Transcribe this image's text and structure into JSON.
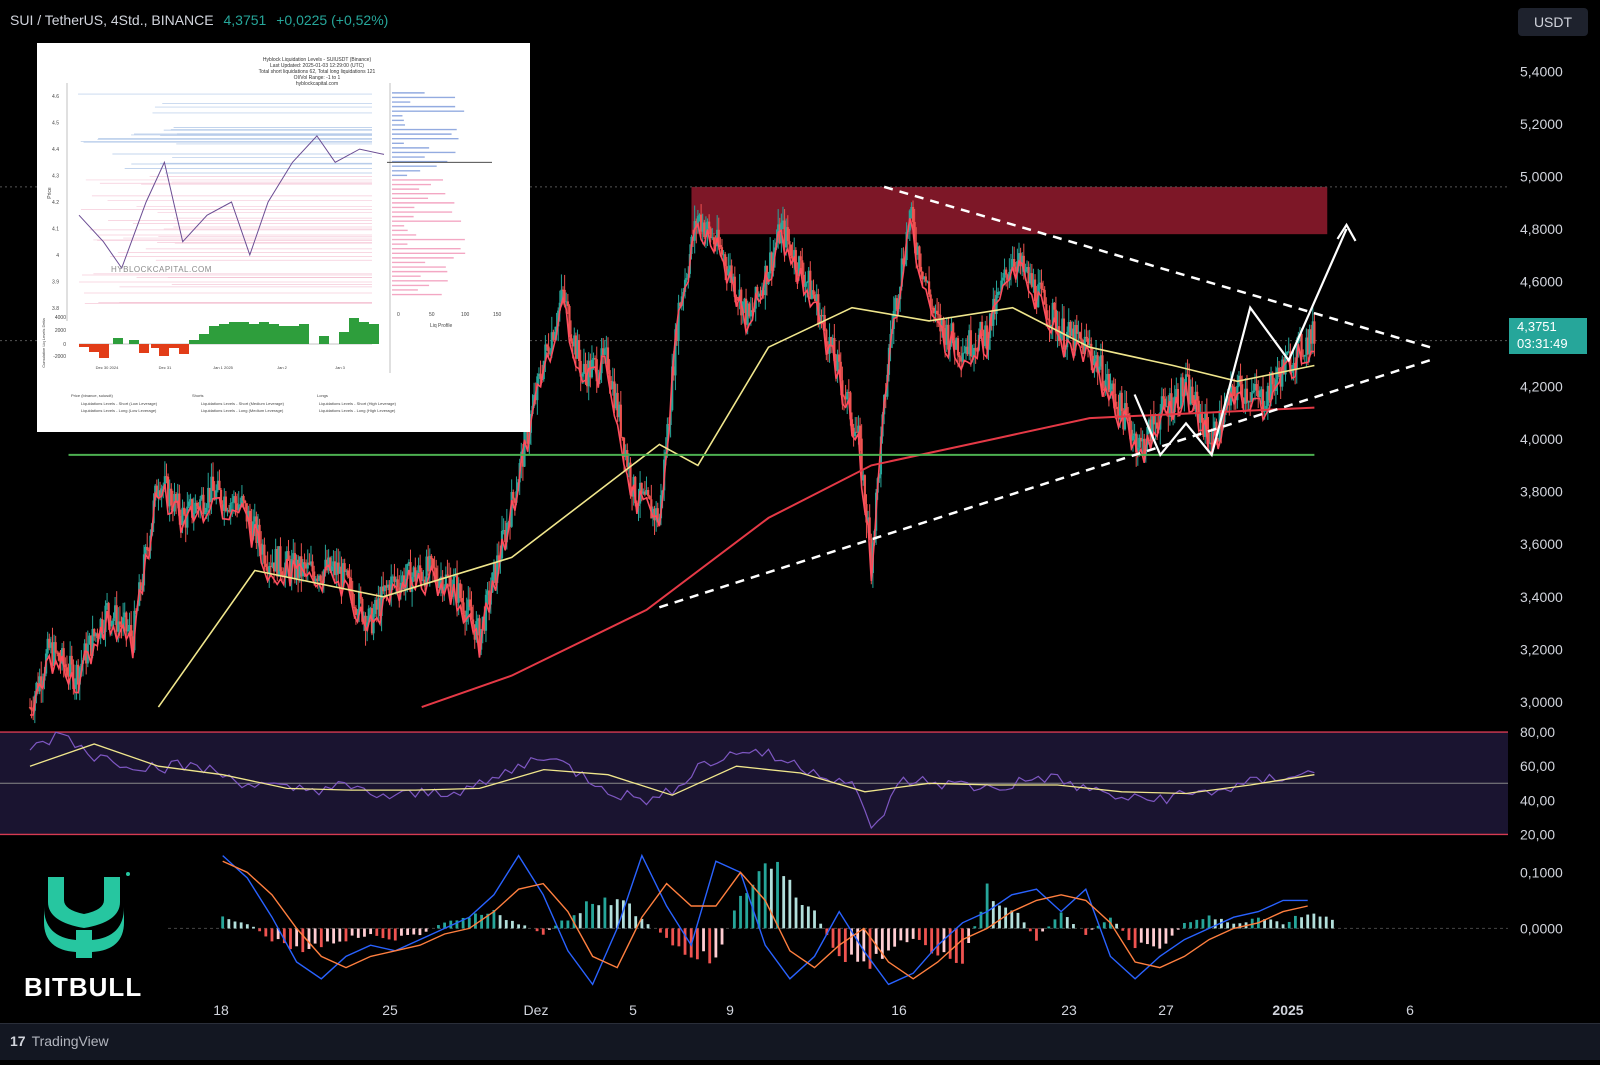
{
  "header": {
    "symbol": "SUI / TetherUS, 4Std., BINANCE",
    "price": "4,3751",
    "change": "+0,0225 (+0,52%)"
  },
  "currency_button": "USDT",
  "price_label": {
    "price": "4,3751",
    "countdown": "03:31:49"
  },
  "footer": {
    "logo_mark": "17",
    "logo_text": "TradingView"
  },
  "brand": {
    "name": "BITBULL"
  },
  "inset": {
    "title_lines": [
      "Hyblock Liquidation Levels - SUIUSDT (Binance)",
      "Last Updated: 2025-01-03 12:29:00 (UTC)",
      "Total short liquidations 62, Total long liquidations 121",
      "OI/Vol Range: -1 to 1",
      "hyblockcapital.com"
    ],
    "watermark": "HYBLOCKCAPITAL.COM",
    "ylabel": "Price",
    "lower_ylabel": "Cumulative Liq Levels Delta",
    "yticks": [
      "4.6",
      "4.5",
      "4.4",
      "4.3",
      "4.2",
      "4.1",
      "4",
      "3.9",
      "3.8"
    ],
    "lower_yticks": [
      "4000",
      "2000",
      "0",
      "-2000"
    ],
    "xticks": [
      "Dec 30 2024",
      "Dec 31",
      "Jan 1 2025",
      "Jan 2",
      "Jan 3"
    ],
    "profile_xticks": [
      "0",
      "50",
      "100",
      "150"
    ],
    "profile_label": "Liq Profile",
    "legend": [
      "Price (binance, suiusdt)",
      "Shorts",
      "Longs",
      "Liquidations Levels - Short (Low Leverage)",
      "Liquidations Levels - Short (Medium Leverage)",
      "Liquidations Levels - Short (High Leverage)",
      "Liquidations Levels - Long (Low Leverage)",
      "Liquidations Levels - Long (Medium Leverage)",
      "Liquidations Levels - Long (High Leverage)"
    ]
  },
  "colors": {
    "background": "#000000",
    "up": "#26a69a",
    "down": "#ef5350",
    "ema_yellow": "#f0e68c",
    "ema_red": "#e53946",
    "supertrend": "#ff4d5e",
    "resistance_zone": "#8b1a2b",
    "support_line": "#4caf50",
    "rsi_line": "#7e57c2",
    "rsi_signal": "#f0e68c",
    "macd_line": "#2962ff",
    "signal_line": "#ff7f3f"
  },
  "chart_data": [
    {
      "type": "candlestick",
      "title": "SUI / TetherUS, 4Std., BINANCE",
      "ylim": [
        2.95,
        5.5
      ],
      "ytick_labels": [
        "5,4000",
        "5,2000",
        "5,0000",
        "4,8000",
        "4,6000",
        "4,4000",
        "4,2000",
        "4,0000",
        "3,8000",
        "3,6000",
        "3,4000",
        "3,2000",
        "3,0000"
      ],
      "ytick_values": [
        5.4,
        5.2,
        5.0,
        4.8,
        4.6,
        4.4,
        4.2,
        4.0,
        3.8,
        3.6,
        3.4,
        3.2,
        3.0
      ],
      "xtick_labels": [
        "18",
        "25",
        "Dez",
        "5",
        "9",
        "16",
        "23",
        "27",
        "2025",
        "6"
      ],
      "price_path": [
        [
          0,
          2.98
        ],
        [
          3,
          3.2
        ],
        [
          7,
          3.1
        ],
        [
          12,
          3.35
        ],
        [
          16,
          3.25
        ],
        [
          20,
          3.85
        ],
        [
          24,
          3.7
        ],
        [
          28,
          3.8
        ],
        [
          33,
          3.75
        ],
        [
          37,
          3.55
        ],
        [
          42,
          3.5
        ],
        [
          48,
          3.5
        ],
        [
          53,
          3.3
        ],
        [
          56,
          3.45
        ],
        [
          62,
          3.5
        ],
        [
          66,
          3.45
        ],
        [
          70,
          3.25
        ],
        [
          75,
          3.75
        ],
        [
          80,
          4.3
        ],
        [
          83,
          4.55
        ],
        [
          86,
          4.25
        ],
        [
          90,
          4.3
        ],
        [
          94,
          3.8
        ],
        [
          98,
          3.7
        ],
        [
          101,
          4.5
        ],
        [
          104,
          4.85
        ],
        [
          108,
          4.7
        ],
        [
          112,
          4.45
        ],
        [
          117,
          4.8
        ],
        [
          122,
          4.55
        ],
        [
          126,
          4.25
        ],
        [
          129,
          4.0
        ],
        [
          131,
          3.55
        ],
        [
          134,
          4.4
        ],
        [
          137,
          4.85
        ],
        [
          141,
          4.45
        ],
        [
          145,
          4.35
        ],
        [
          149,
          4.4
        ],
        [
          153,
          4.7
        ],
        [
          157,
          4.55
        ],
        [
          161,
          4.4
        ],
        [
          165,
          4.35
        ],
        [
          169,
          4.15
        ],
        [
          173,
          3.97
        ],
        [
          176,
          4.1
        ],
        [
          180,
          4.2
        ],
        [
          184,
          4.0
        ],
        [
          188,
          4.2
        ],
        [
          192,
          4.15
        ],
        [
          196,
          4.3
        ],
        [
          200,
          4.4
        ]
      ],
      "ema_yellow": [
        [
          20,
          2.98
        ],
        [
          35,
          3.5
        ],
        [
          55,
          3.4
        ],
        [
          75,
          3.55
        ],
        [
          98,
          3.98
        ],
        [
          104,
          3.9
        ],
        [
          115,
          4.35
        ],
        [
          128,
          4.5
        ],
        [
          140,
          4.45
        ],
        [
          153,
          4.5
        ],
        [
          165,
          4.35
        ],
        [
          178,
          4.28
        ],
        [
          188,
          4.22
        ],
        [
          200,
          4.28
        ]
      ],
      "ema_red": [
        [
          61,
          2.98
        ],
        [
          75,
          3.1
        ],
        [
          96,
          3.35
        ],
        [
          115,
          3.7
        ],
        [
          131,
          3.9
        ],
        [
          150,
          4.0
        ],
        [
          165,
          4.08
        ],
        [
          200,
          4.12
        ]
      ],
      "annotations": {
        "resistance_zone": [
          4.78,
          4.96
        ],
        "support_level": 3.94,
        "last_price_line": 4.375,
        "triangle_upper": [
          [
            133,
            4.96
          ],
          [
            218,
            4.35
          ]
        ],
        "triangle_lower": [
          [
            98,
            3.36
          ],
          [
            218,
            4.3
          ]
        ],
        "projected_target": 4.8
      },
      "last_price": 4.3751
    },
    {
      "type": "line",
      "title": "RSI",
      "ylim": [
        15,
        90
      ],
      "ytick_labels": [
        "80,00",
        "60,00",
        "40,00",
        "20,00"
      ],
      "ytick_values": [
        80,
        60,
        40,
        20
      ],
      "bands": [
        20,
        50,
        80
      ],
      "rsi": [
        [
          0,
          70
        ],
        [
          5,
          80
        ],
        [
          10,
          66
        ],
        [
          18,
          60
        ],
        [
          26,
          60
        ],
        [
          34,
          50
        ],
        [
          40,
          46
        ],
        [
          48,
          48
        ],
        [
          56,
          42
        ],
        [
          64,
          45
        ],
        [
          70,
          48
        ],
        [
          80,
          67
        ],
        [
          86,
          55
        ],
        [
          92,
          43
        ],
        [
          98,
          40
        ],
        [
          104,
          60
        ],
        [
          112,
          70
        ],
        [
          120,
          60
        ],
        [
          128,
          50
        ],
        [
          131,
          22
        ],
        [
          136,
          52
        ],
        [
          142,
          50
        ],
        [
          150,
          47
        ],
        [
          158,
          54
        ],
        [
          166,
          45
        ],
        [
          172,
          40
        ],
        [
          180,
          43
        ],
        [
          188,
          48
        ],
        [
          196,
          55
        ],
        [
          200,
          56
        ]
      ],
      "signal": [
        [
          0,
          60
        ],
        [
          10,
          73
        ],
        [
          20,
          60
        ],
        [
          30,
          55
        ],
        [
          40,
          47
        ],
        [
          50,
          46
        ],
        [
          60,
          46
        ],
        [
          70,
          47
        ],
        [
          80,
          58
        ],
        [
          90,
          55
        ],
        [
          100,
          43
        ],
        [
          110,
          60
        ],
        [
          120,
          56
        ],
        [
          130,
          45
        ],
        [
          140,
          50
        ],
        [
          150,
          49
        ],
        [
          160,
          49
        ],
        [
          170,
          45
        ],
        [
          180,
          44
        ],
        [
          190,
          49
        ],
        [
          200,
          55
        ]
      ]
    },
    {
      "type": "bar",
      "title": "MACD",
      "ylim": [
        -0.11,
        0.14
      ],
      "ytick_labels": [
        "0,1000",
        "0,0000"
      ],
      "ytick_values": [
        0.1,
        0.0
      ],
      "histogram": [
        [
          0,
          0.02
        ],
        [
          4,
          0.01
        ],
        [
          8,
          -0.02
        ],
        [
          12,
          -0.04
        ],
        [
          16,
          -0.03
        ],
        [
          20,
          -0.02
        ],
        [
          24,
          -0.01
        ],
        [
          28,
          -0.02
        ],
        [
          32,
          -0.01
        ],
        [
          36,
          0.01
        ],
        [
          40,
          0.02
        ],
        [
          44,
          0.03
        ],
        [
          48,
          0.01
        ],
        [
          52,
          -0.01
        ],
        [
          56,
          0.02
        ],
        [
          60,
          0.05
        ],
        [
          64,
          0.06
        ],
        [
          68,
          0.02
        ],
        [
          72,
          -0.02
        ],
        [
          76,
          -0.05
        ],
        [
          80,
          -0.06
        ],
        [
          84,
          0.06
        ],
        [
          88,
          0.12
        ],
        [
          92,
          0.08
        ],
        [
          96,
          0.03
        ],
        [
          100,
          -0.05
        ],
        [
          104,
          -0.07
        ],
        [
          108,
          -0.04
        ],
        [
          112,
          -0.02
        ],
        [
          116,
          -0.05
        ],
        [
          120,
          -0.06
        ],
        [
          124,
          0.07
        ],
        [
          128,
          0.04
        ],
        [
          132,
          -0.02
        ],
        [
          136,
          0.03
        ],
        [
          140,
          -0.01
        ],
        [
          144,
          0.02
        ],
        [
          148,
          -0.03
        ],
        [
          152,
          -0.04
        ],
        [
          156,
          0.01
        ],
        [
          160,
          0.02
        ],
        [
          164,
          0.01
        ],
        [
          168,
          0.02
        ],
        [
          172,
          0.01
        ],
        [
          176,
          0.03
        ],
        [
          180,
          0.02
        ]
      ],
      "macd_line": [
        [
          0,
          0.13
        ],
        [
          4,
          0.09
        ],
        [
          8,
          0.02
        ],
        [
          12,
          -0.06
        ],
        [
          16,
          -0.09
        ],
        [
          20,
          -0.05
        ],
        [
          24,
          -0.03
        ],
        [
          28,
          -0.04
        ],
        [
          32,
          -0.02
        ],
        [
          36,
          0.0
        ],
        [
          40,
          0.02
        ],
        [
          44,
          0.06
        ],
        [
          48,
          0.13
        ],
        [
          52,
          0.06
        ],
        [
          56,
          -0.04
        ],
        [
          60,
          -0.1
        ],
        [
          64,
          0.0
        ],
        [
          68,
          0.13
        ],
        [
          72,
          0.04
        ],
        [
          76,
          -0.03
        ],
        [
          80,
          0.12
        ],
        [
          84,
          0.1
        ],
        [
          88,
          -0.03
        ],
        [
          92,
          -0.09
        ],
        [
          96,
          -0.05
        ],
        [
          100,
          0.03
        ],
        [
          104,
          -0.04
        ],
        [
          108,
          -0.1
        ],
        [
          112,
          -0.08
        ],
        [
          116,
          -0.03
        ],
        [
          120,
          0.01
        ],
        [
          124,
          0.03
        ],
        [
          128,
          0.06
        ],
        [
          132,
          0.07
        ],
        [
          136,
          0.03
        ],
        [
          140,
          0.07
        ],
        [
          144,
          -0.05
        ],
        [
          148,
          -0.09
        ],
        [
          152,
          -0.05
        ],
        [
          156,
          -0.02
        ],
        [
          160,
          0.0
        ],
        [
          164,
          0.02
        ],
        [
          168,
          0.03
        ],
        [
          172,
          0.05
        ],
        [
          176,
          0.05
        ]
      ],
      "signal_line": [
        [
          0,
          0.12
        ],
        [
          4,
          0.1
        ],
        [
          8,
          0.06
        ],
        [
          12,
          0.0
        ],
        [
          16,
          -0.05
        ],
        [
          20,
          -0.07
        ],
        [
          24,
          -0.05
        ],
        [
          28,
          -0.04
        ],
        [
          32,
          -0.03
        ],
        [
          36,
          -0.01
        ],
        [
          40,
          0.0
        ],
        [
          44,
          0.03
        ],
        [
          48,
          0.07
        ],
        [
          52,
          0.08
        ],
        [
          56,
          0.03
        ],
        [
          60,
          -0.05
        ],
        [
          64,
          -0.07
        ],
        [
          68,
          0.02
        ],
        [
          72,
          0.08
        ],
        [
          76,
          0.04
        ],
        [
          80,
          0.04
        ],
        [
          84,
          0.1
        ],
        [
          88,
          0.05
        ],
        [
          92,
          -0.04
        ],
        [
          96,
          -0.07
        ],
        [
          100,
          -0.03
        ],
        [
          104,
          0.0
        ],
        [
          108,
          -0.06
        ],
        [
          112,
          -0.09
        ],
        [
          116,
          -0.06
        ],
        [
          120,
          -0.02
        ],
        [
          124,
          0.0
        ],
        [
          128,
          0.03
        ],
        [
          132,
          0.05
        ],
        [
          136,
          0.06
        ],
        [
          140,
          0.05
        ],
        [
          144,
          0.01
        ],
        [
          148,
          -0.06
        ],
        [
          152,
          -0.07
        ],
        [
          156,
          -0.05
        ],
        [
          160,
          -0.02
        ],
        [
          164,
          0.0
        ],
        [
          168,
          0.01
        ],
        [
          172,
          0.03
        ],
        [
          176,
          0.04
        ]
      ]
    }
  ]
}
